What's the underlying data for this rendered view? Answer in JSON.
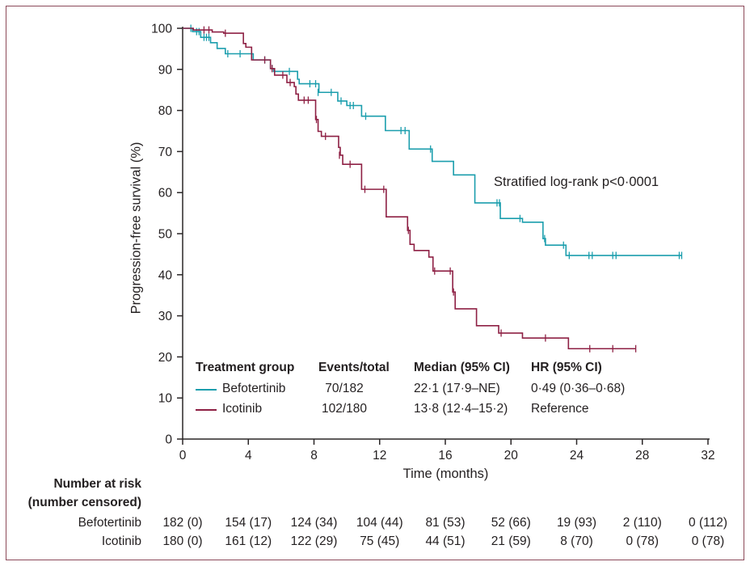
{
  "figure": {
    "background": "#ffffff",
    "border_color": "#8c4a59",
    "axis_color": "#2a2627",
    "text_color": "#231f20"
  },
  "annotation": {
    "text": "Stratified log-rank p<0·0001"
  },
  "axes": {
    "x": {
      "label": "Time (months)",
      "min": 0,
      "max": 32,
      "ticks": [
        0,
        4,
        8,
        12,
        16,
        20,
        24,
        28,
        32
      ]
    },
    "y": {
      "label": "Progression-free survival (%)",
      "min": 0,
      "max": 100,
      "ticks": [
        0,
        10,
        20,
        30,
        40,
        50,
        60,
        70,
        80,
        90,
        100
      ]
    }
  },
  "chart_data": {
    "type": "line",
    "subtype": "kaplan-meier-step",
    "title": "",
    "xlabel": "Time (months)",
    "ylabel": "Progression-free survival (%)",
    "xlim": [
      0,
      32
    ],
    "ylim": [
      0,
      100
    ],
    "grid": false,
    "annotation": "Stratified log-rank p<0·0001",
    "series": [
      {
        "name": "Befotertinib",
        "color": "#1b9ead",
        "end_time": 30.4,
        "steps": [
          [
            0,
            100
          ],
          [
            0.6,
            99.2
          ],
          [
            1.1,
            97.8
          ],
          [
            1.7,
            96.5
          ],
          [
            2.1,
            95.1
          ],
          [
            2.6,
            93.8
          ],
          [
            4.3,
            92.3
          ],
          [
            5.35,
            90.2
          ],
          [
            5.55,
            89.5
          ],
          [
            7.0,
            87.6
          ],
          [
            7.1,
            86.5
          ],
          [
            8.3,
            84.4
          ],
          [
            9.45,
            82.3
          ],
          [
            10.0,
            81.2
          ],
          [
            10.9,
            78.6
          ],
          [
            12.35,
            75.1
          ],
          [
            13.8,
            70.6
          ],
          [
            15.2,
            67.6
          ],
          [
            16.5,
            64.3
          ],
          [
            17.8,
            57.5
          ],
          [
            19.35,
            53.7
          ],
          [
            20.7,
            52.8
          ],
          [
            21.95,
            48.8
          ],
          [
            22.1,
            47.2
          ],
          [
            23.35,
            44.7
          ]
        ],
        "censors": [
          [
            0.5,
            100
          ],
          [
            0.85,
            99.2
          ],
          [
            1.0,
            99.2
          ],
          [
            1.3,
            97.8
          ],
          [
            1.45,
            97.8
          ],
          [
            1.6,
            97.8
          ],
          [
            2.75,
            93.8
          ],
          [
            3.5,
            93.8
          ],
          [
            5.0,
            92.3
          ],
          [
            5.45,
            90.2
          ],
          [
            6.5,
            89.5
          ],
          [
            7.75,
            86.5
          ],
          [
            8.1,
            86.5
          ],
          [
            8.25,
            84.4
          ],
          [
            9.05,
            84.4
          ],
          [
            9.65,
            82.3
          ],
          [
            10.2,
            81.2
          ],
          [
            10.4,
            81.2
          ],
          [
            11.15,
            78.6
          ],
          [
            13.3,
            75.1
          ],
          [
            13.55,
            75.1
          ],
          [
            15.1,
            70.6
          ],
          [
            19.15,
            57.5
          ],
          [
            19.3,
            57.5
          ],
          [
            20.55,
            53.7
          ],
          [
            22.05,
            48.8
          ],
          [
            23.2,
            47.2
          ],
          [
            23.55,
            44.7
          ],
          [
            24.75,
            44.7
          ],
          [
            24.95,
            44.7
          ],
          [
            26.2,
            44.7
          ],
          [
            26.4,
            44.7
          ],
          [
            30.25,
            44.7
          ],
          [
            30.4,
            44.7
          ]
        ]
      },
      {
        "name": "Icotinib",
        "color": "#8e2044",
        "end_time": 27.6,
        "steps": [
          [
            0,
            100
          ],
          [
            0.65,
            99.6
          ],
          [
            1.8,
            99.1
          ],
          [
            2.5,
            98.8
          ],
          [
            3.7,
            96.3
          ],
          [
            3.85,
            95.4
          ],
          [
            4.2,
            92.3
          ],
          [
            5.35,
            90.2
          ],
          [
            5.6,
            88.6
          ],
          [
            6.35,
            86.8
          ],
          [
            6.8,
            85.8
          ],
          [
            6.9,
            84.0
          ],
          [
            7.05,
            82.5
          ],
          [
            8.1,
            77.8
          ],
          [
            8.25,
            74.9
          ],
          [
            8.45,
            73.7
          ],
          [
            9.5,
            71.0
          ],
          [
            9.6,
            69.1
          ],
          [
            9.75,
            66.9
          ],
          [
            10.9,
            60.8
          ],
          [
            12.4,
            54.1
          ],
          [
            13.7,
            50.8
          ],
          [
            13.85,
            47.4
          ],
          [
            14.1,
            45.9
          ],
          [
            15.0,
            44.3
          ],
          [
            15.25,
            40.9
          ],
          [
            16.45,
            35.8
          ],
          [
            16.6,
            31.7
          ],
          [
            17.9,
            27.6
          ],
          [
            19.25,
            25.8
          ],
          [
            20.7,
            24.6
          ],
          [
            23.5,
            22.0
          ]
        ],
        "censors": [
          [
            1.3,
            99.6
          ],
          [
            1.6,
            99.6
          ],
          [
            2.6,
            98.8
          ],
          [
            5.0,
            92.3
          ],
          [
            5.45,
            90.2
          ],
          [
            6.1,
            88.6
          ],
          [
            6.55,
            86.8
          ],
          [
            7.4,
            82.5
          ],
          [
            7.65,
            82.5
          ],
          [
            8.15,
            77.8
          ],
          [
            8.7,
            73.7
          ],
          [
            9.55,
            69.1
          ],
          [
            10.2,
            66.9
          ],
          [
            11.1,
            60.8
          ],
          [
            12.25,
            60.8
          ],
          [
            13.75,
            50.8
          ],
          [
            15.35,
            40.9
          ],
          [
            16.3,
            40.9
          ],
          [
            16.5,
            35.8
          ],
          [
            19.4,
            25.8
          ],
          [
            22.1,
            24.6
          ],
          [
            24.8,
            22.0
          ],
          [
            26.2,
            22.0
          ],
          [
            27.6,
            22.0
          ]
        ]
      }
    ]
  },
  "legend": {
    "headers": [
      "Treatment group",
      "Events/total",
      "Median (95% CI)",
      "HR (95% CI)"
    ],
    "rows": [
      {
        "group": "Befotertinib",
        "color": "#1b9ead",
        "events_total": "70/182",
        "median": "22·1 (17·9–NE)",
        "hr": "0·49 (0·36–0·68)"
      },
      {
        "group": "Icotinib",
        "color": "#8e2044",
        "events_total": "102/180",
        "median": "13·8 (12·4–15·2)",
        "hr": "Reference"
      }
    ]
  },
  "risk_table": {
    "title_line1": "Number at risk",
    "title_line2": "(number censored)",
    "times": [
      0,
      4,
      8,
      12,
      16,
      20,
      24,
      28,
      32
    ],
    "rows": [
      {
        "label": "Befotertinib",
        "values": [
          "182 (0)",
          "154 (17)",
          "124 (34)",
          "104 (44)",
          "81 (53)",
          "52 (66)",
          "19 (93)",
          "2 (110)",
          "0 (112)"
        ]
      },
      {
        "label": "Icotinib",
        "values": [
          "180 (0)",
          "161 (12)",
          "122 (29)",
          "75 (45)",
          "44 (51)",
          "21 (59)",
          "8 (70)",
          "0 (78)",
          "0 (78)"
        ]
      }
    ]
  }
}
